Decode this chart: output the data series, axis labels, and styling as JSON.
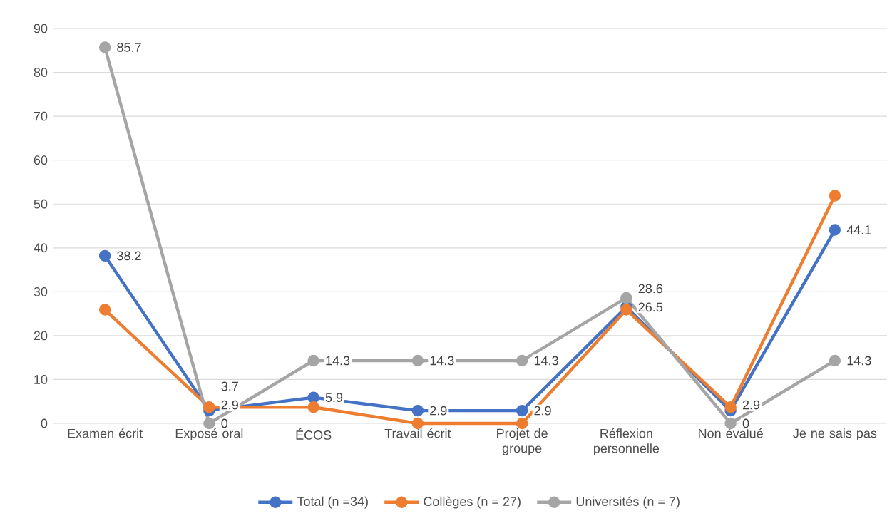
{
  "chart_data": {
    "type": "line",
    "categories": [
      "Examen écrit",
      "Exposé oral",
      "ÉCOS",
      "Travail écrit",
      "Projet de groupe",
      "Réflexion personnelle",
      "Non évalué",
      "Je ne sais pas"
    ],
    "series": [
      {
        "name": "Total (n =34)",
        "color": "#4472c4",
        "values": [
          38.2,
          2.9,
          5.9,
          2.9,
          2.9,
          26.5,
          2.9,
          44.1
        ],
        "value_labels": [
          "38.2",
          "2.9",
          "5.9",
          "2.9",
          "2.9",
          "26.5",
          "2.9",
          "44.1"
        ]
      },
      {
        "name": "Collèges (n = 27)",
        "color": "#ed7d31",
        "values": [
          25.9,
          3.7,
          3.7,
          0,
          0,
          25.9,
          3.7,
          51.9
        ],
        "value_labels": [
          null,
          "3.7",
          null,
          null,
          null,
          null,
          null,
          null
        ]
      },
      {
        "name": "Universités (n = 7)",
        "color": "#a5a5a5",
        "values": [
          85.7,
          0,
          14.3,
          14.3,
          14.3,
          28.6,
          0,
          14.3
        ],
        "value_labels": [
          "85.7",
          "0",
          "14.3",
          "14.3",
          "14.3",
          "28.6",
          "0",
          "14.3"
        ]
      }
    ],
    "ylim": [
      0,
      90
    ],
    "yticks": [
      0,
      10,
      20,
      30,
      40,
      50,
      60,
      70,
      80,
      90
    ],
    "grid": "y",
    "legend": "bottom",
    "marker": "circle",
    "line_style": "solid"
  }
}
